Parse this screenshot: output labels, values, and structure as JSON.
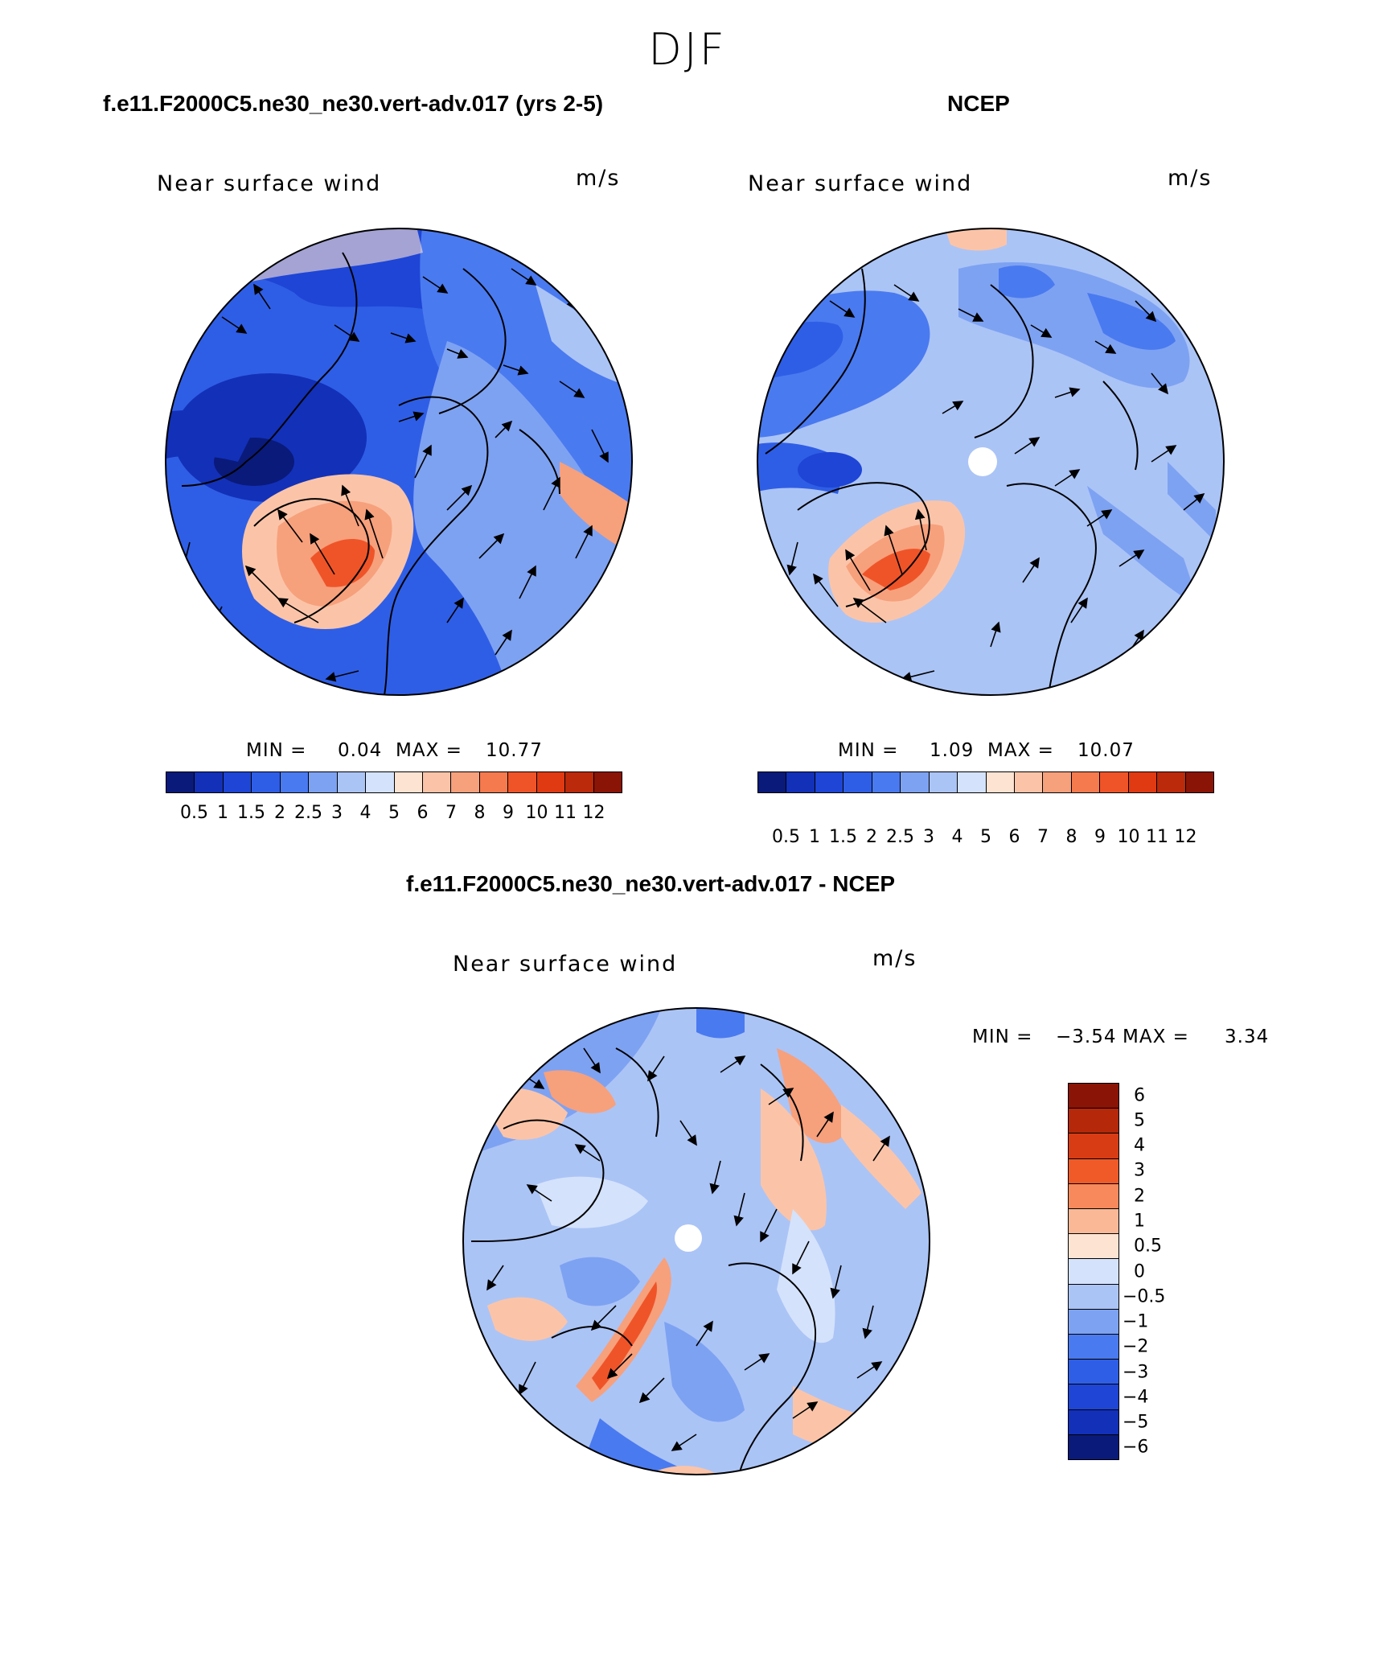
{
  "figure": {
    "season": "DJF"
  },
  "panels": [
    {
      "id": "model",
      "title": "f.e11.F2000C5.ne30_ne30.vert-adv.017 (yrs 2-5)",
      "variable": "Near surface wind",
      "units": "m/s",
      "min_label": "MIN =",
      "min_value": "0.04",
      "max_label": "MAX =",
      "max_value": "10.77"
    },
    {
      "id": "obs",
      "title": "NCEP",
      "variable": "Near surface wind",
      "units": "m/s",
      "min_label": "MIN =",
      "min_value": "1.09",
      "max_label": "MAX =",
      "max_value": "10.07"
    },
    {
      "id": "diff",
      "title": "f.e11.F2000C5.ne30_ne30.vert-adv.017 - NCEP",
      "variable": "Near surface wind",
      "units": "m/s",
      "min_label": "MIN =",
      "min_value": "−3.54",
      "max_label": "MAX =",
      "max_value": "3.34"
    }
  ],
  "colorbars": {
    "speed": {
      "colors": [
        "#0a1a7a",
        "#1330b8",
        "#1e45d6",
        "#2f5ee6",
        "#4a7af0",
        "#7ea2f2",
        "#abc4f6",
        "#d4e2fb",
        "#fde3d2",
        "#fbc4a8",
        "#f7a07c",
        "#f57a4e",
        "#ef5428",
        "#e03a12",
        "#bb2a0a",
        "#8a1406"
      ],
      "labels": [
        "0.5",
        "1",
        "1.5",
        "2",
        "2.5",
        "3",
        "4",
        "5",
        "6",
        "7",
        "8",
        "9",
        "10",
        "11",
        "12"
      ]
    },
    "difference": {
      "colors_top_to_bottom": [
        "#8a1406",
        "#b5280a",
        "#d83c14",
        "#ef5a28",
        "#f7895c",
        "#fbb896",
        "#fde3d2",
        "#d4e2fb",
        "#abc4f6",
        "#7ea2f2",
        "#4a7af0",
        "#2f5ee6",
        "#1e45d6",
        "#1330b8",
        "#0a1a7a"
      ],
      "labels": [
        "6",
        "5",
        "4",
        "3",
        "2",
        "1",
        "0.5",
        "0",
        "−0.5",
        "−1",
        "−2",
        "−3",
        "−4",
        "−5",
        "−6"
      ]
    }
  }
}
